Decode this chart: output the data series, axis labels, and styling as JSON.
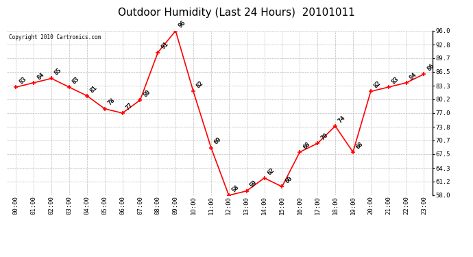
{
  "title": "Outdoor Humidity (Last 24 Hours)  20101011",
  "copyright_text": "Copyright 2010 Cartronics.com",
  "hours": [
    0,
    1,
    2,
    3,
    4,
    5,
    6,
    7,
    8,
    9,
    10,
    11,
    12,
    13,
    14,
    15,
    16,
    17,
    18,
    19,
    20,
    21,
    22,
    23
  ],
  "hour_labels": [
    "00:00",
    "01:00",
    "02:00",
    "03:00",
    "04:00",
    "05:00",
    "06:00",
    "07:00",
    "08:00",
    "09:00",
    "10:00",
    "11:00",
    "12:00",
    "13:00",
    "14:00",
    "15:00",
    "16:00",
    "17:00",
    "18:00",
    "19:00",
    "20:00",
    "21:00",
    "22:00",
    "23:00"
  ],
  "values": [
    83,
    84,
    85,
    83,
    81,
    78,
    77,
    80,
    91,
    96,
    82,
    69,
    58,
    59,
    62,
    60,
    68,
    70,
    74,
    68,
    82,
    83,
    84,
    86
  ],
  "ylim": [
    58.0,
    96.0
  ],
  "yticks": [
    58.0,
    61.2,
    64.3,
    67.5,
    70.7,
    73.8,
    77.0,
    80.2,
    83.3,
    86.5,
    89.7,
    92.8,
    96.0
  ],
  "line_color": "red",
  "marker_color": "red",
  "marker": "+",
  "bg_color": "white",
  "grid_color": "#bbbbbb",
  "title_fontsize": 11,
  "tick_fontsize": 6.5,
  "annot_fontsize": 6.5,
  "copyright_fontsize": 5.5
}
